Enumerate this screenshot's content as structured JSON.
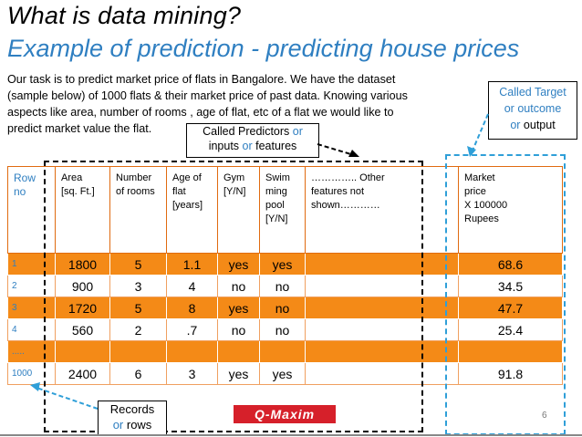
{
  "slide": {
    "title": "What is data mining?",
    "subtitle": "Example of prediction -  predicting house prices",
    "body_lines": [
      "Our task is to predict market price of flats in Bangalore. We have the dataset",
      "(sample  below) of 1000 flats & their market price of past data. Knowing various",
      "aspects like  area, number of  rooms , age of flat, etc  of a flat we would like to",
      "predict market value  the flat."
    ],
    "callout_predictors": {
      "line1_a": "Called Predictors ",
      "line1_b": "or",
      "line2_a": "inputs ",
      "line2_b": "or",
      "line2_c": " features"
    },
    "callout_target": {
      "line1": "Called Target",
      "line2": "or outcome",
      "line3_a": "or",
      "line3_b": " output"
    },
    "callout_records": {
      "line1": "Records",
      "line2_a": "or",
      "line2_b": " rows"
    },
    "logo": "Q-Maxim",
    "page_number": "6"
  },
  "table": {
    "headers": [
      "Row\nno",
      "Area\n[sq. Ft.]",
      "Number\nof rooms",
      "Age of\nflat\n[years]",
      "Gym\n[Y/N]",
      "Swim\nming\npool\n[Y/N]",
      "………….. Other\n features not\nshown…………",
      "Market\nprice\n X 100000\nRupees"
    ],
    "rows": [
      [
        "1",
        "1800",
        "5",
        "1.1",
        "yes",
        "yes",
        "",
        "68.6"
      ],
      [
        "2",
        "900",
        "3",
        "4",
        "no",
        "no",
        "",
        "34.5"
      ],
      [
        "3",
        "1720",
        "5",
        "8",
        "yes",
        "no",
        "",
        "47.7"
      ],
      [
        "4",
        "560",
        "2",
        ".7",
        "no",
        "no",
        "",
        "25.4"
      ],
      [
        ".....",
        "",
        "",
        "",
        "",
        "",
        "",
        ""
      ],
      [
        "1000",
        "2400",
        "6",
        "3",
        "yes",
        "yes",
        "",
        "91.8"
      ]
    ]
  },
  "colors": {
    "accent_blue": "#2f7fc1",
    "row_orange": "#f48a17",
    "logo_red": "#d6202a",
    "dashed_blue": "#2f9fd8"
  }
}
